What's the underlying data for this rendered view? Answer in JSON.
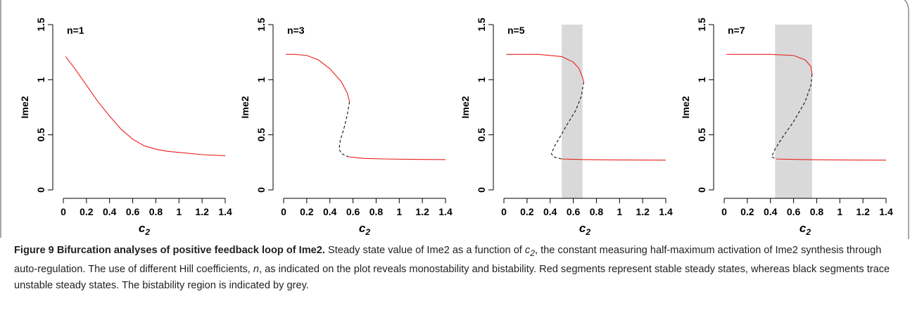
{
  "chart_data": [
    {
      "type": "line",
      "title": "n=1",
      "y_label": "Ime2",
      "x_label": {
        "text": "c",
        "sub": "2"
      },
      "xlim": [
        0,
        1.4
      ],
      "xticks": [
        0,
        0.2,
        0.4,
        0.6,
        0.8,
        1,
        1.2,
        1.4
      ],
      "ylim": [
        0,
        1.5
      ],
      "yticks": [
        0,
        0.5,
        1,
        1.5
      ],
      "series": [
        {
          "color": "#e8201c",
          "dashed": false,
          "x": [
            0.02,
            0.1,
            0.2,
            0.3,
            0.4,
            0.5,
            0.6,
            0.7,
            0.8,
            0.9,
            1.0,
            1.2,
            1.4
          ],
          "values": [
            1.21,
            1.1,
            0.95,
            0.8,
            0.67,
            0.55,
            0.46,
            0.4,
            0.37,
            0.35,
            0.34,
            0.32,
            0.31
          ]
        }
      ]
    },
    {
      "type": "line",
      "title": "n=3",
      "y_label": "Ime2",
      "x_label": {
        "text": "c",
        "sub": "2"
      },
      "xlim": [
        0,
        1.4
      ],
      "xticks": [
        0,
        0.2,
        0.4,
        0.6,
        0.8,
        1,
        1.2,
        1.4
      ],
      "ylim": [
        0,
        1.5
      ],
      "yticks": [
        0,
        0.5,
        1,
        1.5
      ],
      "series": [
        {
          "color": "#e8201c",
          "dashed": false,
          "x": [
            0.02,
            0.1,
            0.2,
            0.3,
            0.4,
            0.5,
            0.55,
            0.57
          ],
          "values": [
            1.23,
            1.23,
            1.22,
            1.18,
            1.1,
            0.98,
            0.88,
            0.8
          ]
        },
        {
          "color": "#111111",
          "dashed": true,
          "x": [
            0.57,
            0.55,
            0.52,
            0.49,
            0.48,
            0.5,
            0.56
          ],
          "values": [
            0.8,
            0.68,
            0.55,
            0.45,
            0.37,
            0.33,
            0.3
          ]
        },
        {
          "color": "#e8201c",
          "dashed": false,
          "x": [
            0.56,
            0.7,
            0.9,
            1.1,
            1.4
          ],
          "values": [
            0.3,
            0.285,
            0.28,
            0.277,
            0.275
          ]
        }
      ]
    },
    {
      "type": "line",
      "title": "n=5",
      "y_label": "Ime2",
      "x_label": {
        "text": "c",
        "sub": "2"
      },
      "xlim": [
        0,
        1.4
      ],
      "xticks": [
        0,
        0.2,
        0.4,
        0.6,
        0.8,
        1,
        1.2,
        1.4
      ],
      "ylim": [
        0,
        1.5
      ],
      "yticks": [
        0,
        0.5,
        1,
        1.5
      ],
      "shade_x": [
        0.5,
        0.68
      ],
      "shade_color": "#d9d9d9",
      "series": [
        {
          "color": "#e8201c",
          "dashed": false,
          "x": [
            0.02,
            0.3,
            0.5,
            0.6,
            0.65,
            0.68,
            0.69
          ],
          "values": [
            1.23,
            1.23,
            1.21,
            1.16,
            1.1,
            1.02,
            0.98
          ]
        },
        {
          "color": "#111111",
          "dashed": true,
          "x": [
            0.69,
            0.67,
            0.62,
            0.55,
            0.49,
            0.44,
            0.41,
            0.43,
            0.5
          ],
          "values": [
            0.98,
            0.85,
            0.72,
            0.6,
            0.49,
            0.4,
            0.33,
            0.3,
            0.28
          ]
        },
        {
          "color": "#e8201c",
          "dashed": false,
          "x": [
            0.5,
            0.7,
            1.0,
            1.4
          ],
          "values": [
            0.28,
            0.275,
            0.272,
            0.27
          ]
        }
      ]
    },
    {
      "type": "line",
      "title": "n=7",
      "y_label": "Ime2",
      "x_label": {
        "text": "c",
        "sub": "2"
      },
      "xlim": [
        0,
        1.4
      ],
      "xticks": [
        0,
        0.2,
        0.4,
        0.6,
        0.8,
        1,
        1.2,
        1.4
      ],
      "ylim": [
        0,
        1.5
      ],
      "yticks": [
        0,
        0.5,
        1,
        1.5
      ],
      "shade_x": [
        0.44,
        0.76
      ],
      "shade_color": "#d9d9d9",
      "series": [
        {
          "color": "#e8201c",
          "dashed": false,
          "x": [
            0.02,
            0.4,
            0.6,
            0.7,
            0.75,
            0.76
          ],
          "values": [
            1.23,
            1.23,
            1.22,
            1.18,
            1.12,
            1.05
          ]
        },
        {
          "color": "#111111",
          "dashed": true,
          "x": [
            0.76,
            0.75,
            0.7,
            0.6,
            0.5,
            0.44,
            0.41,
            0.45
          ],
          "values": [
            1.05,
            0.95,
            0.8,
            0.62,
            0.47,
            0.37,
            0.3,
            0.28
          ]
        },
        {
          "color": "#e8201c",
          "dashed": false,
          "x": [
            0.45,
            0.7,
            1.0,
            1.4
          ],
          "values": [
            0.28,
            0.275,
            0.272,
            0.27
          ]
        }
      ]
    }
  ],
  "caption": {
    "title": "Figure 9 Bifurcation analyses of positive feedback loop of Ime2.",
    "text_1": " Steady state value of Ime2 as a function of ",
    "var_c": "c",
    "var_c_sub": "2",
    "text_2": ", the constant measuring half-maximum activation of Ime2 synthesis through auto-regulation. The use of different Hill coefficients, ",
    "var_n": "n",
    "text_3": ", as indicated on the plot reveals monostability and bistability. Red segments represent stable steady states, whereas black segments trace unstable steady states. The bistability region is indicated by grey."
  }
}
